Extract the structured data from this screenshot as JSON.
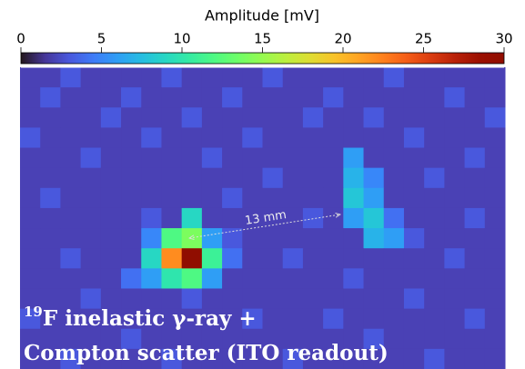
{
  "chart_data": {
    "type": "heatmap",
    "colorbar_label": "Amplitude [mV]",
    "colormap": "turbo",
    "clim": [
      0,
      30
    ],
    "cticks": [
      0,
      5,
      10,
      15,
      20,
      25,
      30
    ],
    "annotation": "13 mm",
    "caption_sup": "19",
    "caption_line1": "F inelastic γ-ray +",
    "caption_line2": "Compton scatter (ITO readout)",
    "z": [
      [
        2,
        2,
        3,
        2,
        2,
        2,
        2,
        3,
        2,
        2,
        2,
        2,
        3,
        2,
        2,
        2,
        2,
        2,
        3,
        2,
        2,
        2,
        2,
        2
      ],
      [
        2,
        3,
        2,
        2,
        2,
        3,
        2,
        2,
        2,
        2,
        3,
        2,
        2,
        2,
        2,
        3,
        2,
        2,
        2,
        2,
        2,
        3,
        2,
        2
      ],
      [
        2,
        2,
        2,
        2,
        3,
        2,
        2,
        2,
        3,
        2,
        2,
        2,
        2,
        2,
        3,
        2,
        2,
        3,
        2,
        2,
        2,
        2,
        2,
        3
      ],
      [
        3,
        2,
        2,
        2,
        2,
        2,
        3,
        2,
        2,
        2,
        2,
        3,
        2,
        2,
        2,
        2,
        2,
        2,
        2,
        3,
        2,
        2,
        2,
        2
      ],
      [
        2,
        2,
        2,
        3,
        2,
        2,
        2,
        2,
        2,
        3,
        2,
        2,
        2,
        2,
        2,
        2,
        6,
        2,
        2,
        2,
        2,
        2,
        3,
        2
      ],
      [
        2,
        2,
        2,
        2,
        2,
        2,
        2,
        2,
        2,
        2,
        2,
        2,
        3,
        2,
        2,
        2,
        7,
        5,
        2,
        2,
        3,
        2,
        2,
        2
      ],
      [
        2,
        3,
        2,
        2,
        2,
        2,
        2,
        2,
        2,
        2,
        3,
        2,
        2,
        2,
        2,
        2,
        8,
        6,
        2,
        2,
        2,
        2,
        2,
        2
      ],
      [
        2,
        2,
        2,
        2,
        2,
        2,
        3,
        2,
        9,
        2,
        2,
        2,
        2,
        2,
        3,
        2,
        6,
        8,
        4,
        2,
        2,
        2,
        3,
        2
      ],
      [
        2,
        2,
        2,
        2,
        2,
        2,
        5,
        12,
        14,
        6,
        3,
        2,
        2,
        2,
        2,
        2,
        2,
        7,
        6,
        3,
        2,
        2,
        2,
        2
      ],
      [
        2,
        2,
        3,
        2,
        2,
        2,
        9,
        22,
        30,
        11,
        4,
        2,
        2,
        3,
        2,
        2,
        2,
        2,
        2,
        2,
        2,
        3,
        2,
        2
      ],
      [
        2,
        2,
        2,
        2,
        2,
        4,
        6,
        10,
        12,
        6,
        2,
        2,
        2,
        2,
        2,
        2,
        3,
        2,
        2,
        2,
        2,
        2,
        2,
        2
      ],
      [
        2,
        2,
        2,
        3,
        2,
        2,
        2,
        2,
        3,
        2,
        2,
        2,
        2,
        2,
        2,
        2,
        2,
        2,
        2,
        3,
        2,
        2,
        2,
        2
      ],
      [
        3,
        2,
        2,
        2,
        2,
        2,
        2,
        2,
        2,
        2,
        2,
        3,
        2,
        2,
        2,
        3,
        2,
        2,
        2,
        2,
        2,
        2,
        3,
        2
      ],
      [
        2,
        2,
        2,
        2,
        2,
        3,
        2,
        2,
        2,
        2,
        2,
        2,
        2,
        2,
        2,
        2,
        2,
        3,
        2,
        2,
        2,
        2,
        2,
        2
      ],
      [
        2,
        2,
        3,
        2,
        2,
        2,
        2,
        3,
        2,
        2,
        2,
        2,
        2,
        3,
        2,
        2,
        2,
        2,
        2,
        2,
        3,
        2,
        2,
        2
      ]
    ]
  }
}
